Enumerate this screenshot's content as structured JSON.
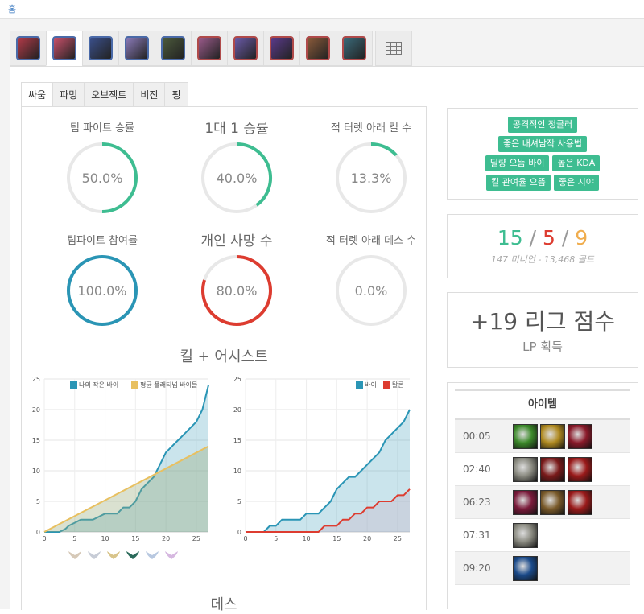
{
  "topbar": {
    "home_label": "홈"
  },
  "champions": [
    {
      "name": "champion-1",
      "color": "#b23a48"
    },
    {
      "name": "champion-2",
      "color": "#c8506a"
    },
    {
      "name": "champion-3",
      "color": "#3a4f8a"
    },
    {
      "name": "champion-4",
      "color": "#8a7ab8"
    },
    {
      "name": "champion-5",
      "color": "#4c5a3c"
    },
    {
      "name": "champion-6",
      "color": "#9a5a8a"
    },
    {
      "name": "champion-7",
      "color": "#6a5aa8"
    },
    {
      "name": "champion-8",
      "color": "#5a3a8a"
    },
    {
      "name": "champion-9",
      "color": "#8a5a3a"
    },
    {
      "name": "champion-10",
      "color": "#3a6a7a"
    }
  ],
  "tabs": [
    "싸움",
    "파밍",
    "오브젝트",
    "비전",
    "핑"
  ],
  "active_tab": 0,
  "stats": [
    {
      "label": "팀 파이트 승률",
      "value": "50.0%",
      "fraction": 0.5,
      "color": "#3ebd91"
    },
    {
      "label": "1대 1 승률",
      "value": "40.0%",
      "fraction": 0.4,
      "color": "#3ebd91"
    },
    {
      "label": "적 터렛 아래 킬 수",
      "value": "13.3%",
      "fraction": 0.133,
      "color": "#3ebd91"
    },
    {
      "label": "팀파이트 참여률",
      "value": "100.0%",
      "fraction": 1.0,
      "color": "#2a95b5"
    },
    {
      "label": "개인 사망 수",
      "value": "80.0%",
      "fraction": 0.8,
      "color": "#dd3c30"
    },
    {
      "label": "적 터렛 아래 데스 수",
      "value": "0.0%",
      "fraction": 0.0,
      "color": "#3ebd91"
    }
  ],
  "section_kills": "킬 + 어시스트",
  "section_deaths": "데스",
  "chart_data": [
    {
      "type": "area",
      "xlim": [
        0,
        27
      ],
      "ylim": [
        0,
        25
      ],
      "xticks": [
        0,
        5,
        10,
        15,
        20,
        25
      ],
      "yticks": [
        0,
        5,
        10,
        15,
        20,
        25
      ],
      "legend": "top-right",
      "series": [
        {
          "name": "나의 작은 바이",
          "color": "#2a95b5",
          "x": [
            0,
            2.5,
            3.5,
            4,
            5,
            6,
            7,
            8,
            9,
            10,
            11,
            12,
            13,
            14,
            15,
            16,
            17,
            18,
            19,
            20,
            21,
            22,
            23,
            24,
            25,
            26,
            27
          ],
          "y": [
            0,
            0,
            0.5,
            1,
            1.5,
            2,
            2,
            2,
            2.5,
            3,
            3,
            3,
            4,
            4,
            5,
            7,
            8,
            9,
            11,
            13,
            14,
            15,
            16,
            17,
            18,
            20,
            24
          ]
        },
        {
          "name": "평균 플래티넘 바이들",
          "color": "#e8c060",
          "x": [
            0,
            27
          ],
          "y": [
            0,
            14
          ]
        }
      ]
    },
    {
      "type": "area",
      "xlim": [
        0,
        27
      ],
      "ylim": [
        0,
        25
      ],
      "xticks": [
        0,
        5,
        10,
        15,
        20,
        25
      ],
      "yticks": [
        0,
        5,
        10,
        15,
        20,
        25
      ],
      "legend": "top-right",
      "series": [
        {
          "name": "바이",
          "color": "#2a95b5",
          "x": [
            0,
            3,
            4,
            5,
            6,
            7,
            8,
            9,
            10,
            11,
            12,
            13,
            14,
            15,
            16,
            17,
            18,
            19,
            20,
            21,
            22,
            23,
            24,
            25,
            26,
            27
          ],
          "y": [
            0,
            0,
            1,
            1,
            2,
            2,
            2,
            2,
            3,
            3,
            3,
            4,
            5,
            7,
            8,
            9,
            9,
            10,
            11,
            12,
            13,
            15,
            16,
            17,
            18,
            20
          ]
        },
        {
          "name": "탈론",
          "color": "#dd3c30",
          "x": [
            0,
            12,
            13,
            14,
            15,
            16,
            17,
            18,
            19,
            20,
            21,
            22,
            23,
            24,
            25,
            26,
            27
          ],
          "y": [
            0,
            0,
            1,
            1,
            1,
            2,
            2,
            3,
            3,
            4,
            4,
            5,
            5,
            5,
            6,
            6,
            7
          ]
        }
      ]
    }
  ],
  "badges": [
    [
      "공격적인 정글러"
    ],
    [
      "좋은 내셔남작 사용법"
    ],
    [
      "딜량 으뜸 바이",
      "높은 KDA"
    ],
    [
      "킬 관여율 으뜸",
      "좋은 시야"
    ]
  ],
  "kda": {
    "kills": "15",
    "sep1": " / ",
    "deaths": "5",
    "sep2": " / ",
    "assists": "9",
    "kills_color": "#3ebd91",
    "deaths_color": "#dd3c30",
    "assists_color": "#f0ad4e",
    "summary": "147 미니언 - 13,468 골드"
  },
  "lp": {
    "value": "+19 리그 점수",
    "label": "LP 획득"
  },
  "items": {
    "header": "아이템",
    "rows": [
      {
        "time": "00:05",
        "icons": [
          "#3c8a2a",
          "#b08a20",
          "#8a1a2a"
        ]
      },
      {
        "time": "02:40",
        "icons": [
          "#8a8a80",
          "#7a1a1a",
          "#9a1a1a"
        ]
      },
      {
        "time": "06:23",
        "icons": [
          "#7a1a3a",
          "#7a5a2a",
          "#9a1a1a"
        ]
      },
      {
        "time": "07:31",
        "icons": [
          "#8a8a80"
        ]
      },
      {
        "time": "09:20",
        "icons": [
          "#1a4a8a"
        ]
      }
    ]
  }
}
